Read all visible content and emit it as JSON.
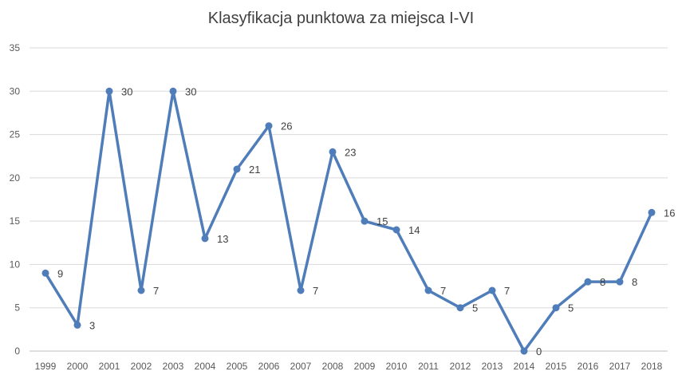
{
  "chart_data": {
    "type": "line",
    "title": "Klasyfikacja punktowa za miejsca I-VI",
    "xlabel": "",
    "ylabel": "",
    "categories": [
      "1999",
      "2000",
      "2001",
      "2002",
      "2003",
      "2004",
      "2005",
      "2006",
      "2007",
      "2008",
      "2009",
      "2010",
      "2011",
      "2012",
      "2013",
      "2014",
      "2015",
      "2016",
      "2017",
      "2018"
    ],
    "series": [
      {
        "values": [
          9,
          3,
          30,
          7,
          30,
          13,
          21,
          26,
          7,
          23,
          15,
          14,
          7,
          5,
          7,
          0,
          5,
          8,
          8,
          16
        ],
        "color": "#4f7dba"
      }
    ],
    "ylim": [
      0,
      35
    ],
    "yticks": [
      0,
      5,
      10,
      15,
      20,
      25,
      30,
      35
    ],
    "grid": true,
    "legend": "none",
    "data_labels": true
  }
}
